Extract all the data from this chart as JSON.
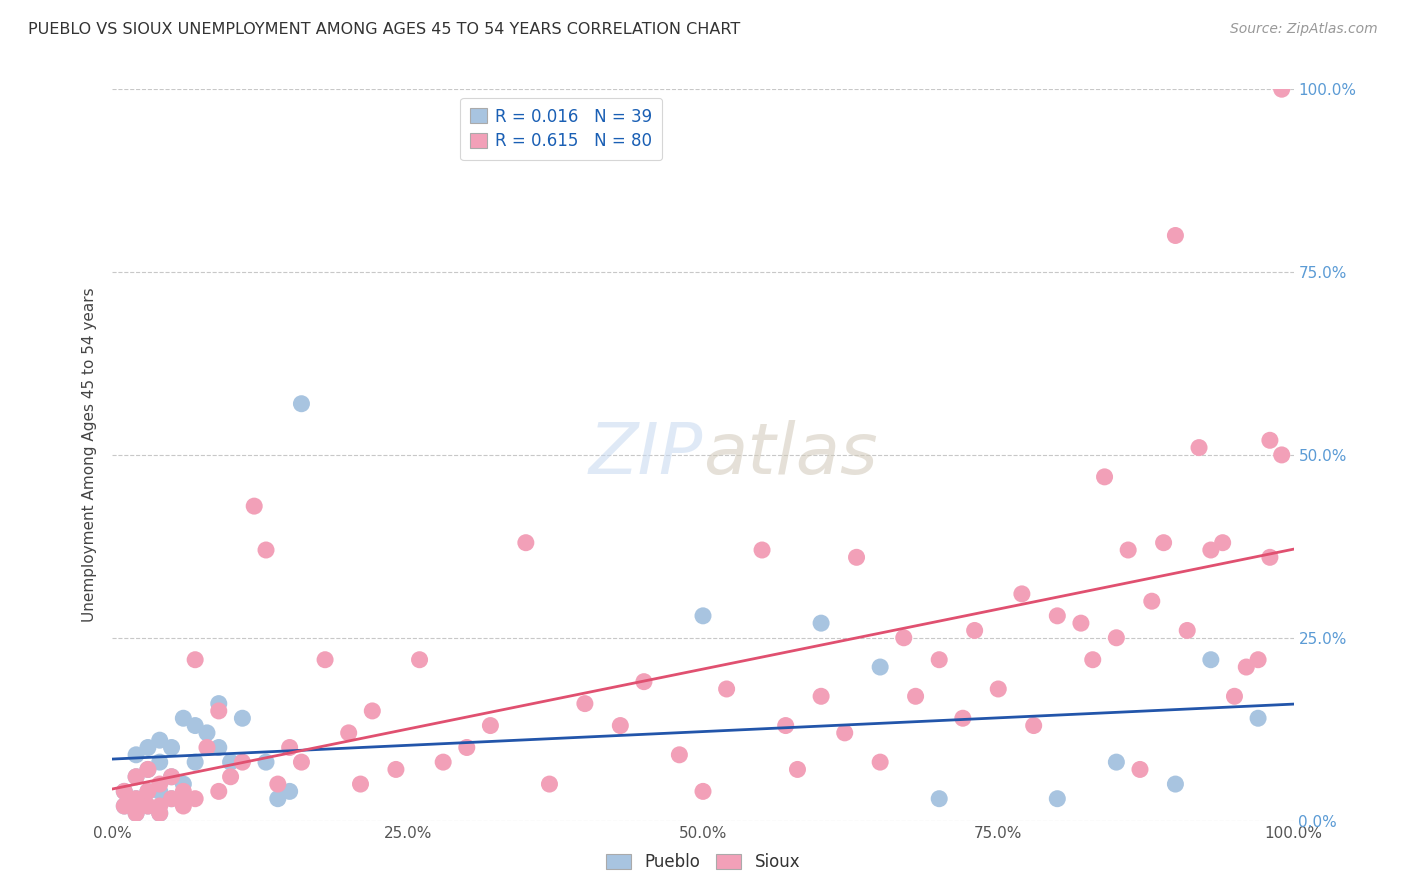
{
  "title": "PUEBLO VS SIOUX UNEMPLOYMENT AMONG AGES 45 TO 54 YEARS CORRELATION CHART",
  "source": "Source: ZipAtlas.com",
  "ylabel": "Unemployment Among Ages 45 to 54 years",
  "xlim": [
    0,
    1.0
  ],
  "ylim": [
    0,
    1.0
  ],
  "xtick_labels": [
    "0.0%",
    "25.0%",
    "50.0%",
    "75.0%",
    "100.0%"
  ],
  "xtick_vals": [
    0.0,
    0.25,
    0.5,
    0.75,
    1.0
  ],
  "right_ytick_labels": [
    "100.0%",
    "75.0%",
    "50.0%",
    "25.0%",
    "0.0%"
  ],
  "right_ytick_vals": [
    1.0,
    0.75,
    0.5,
    0.25,
    0.0
  ],
  "pueblo_color": "#a8c4e0",
  "sioux_color": "#f2a0b8",
  "pueblo_line_color": "#2255aa",
  "sioux_line_color": "#e05070",
  "pueblo_R": 0.016,
  "pueblo_N": 39,
  "sioux_R": 0.615,
  "sioux_N": 80,
  "background_color": "#ffffff",
  "grid_color": "#c8c8c8",
  "pueblo_scatter_x": [
    0.01,
    0.01,
    0.02,
    0.02,
    0.02,
    0.02,
    0.03,
    0.03,
    0.03,
    0.03,
    0.04,
    0.04,
    0.04,
    0.04,
    0.05,
    0.05,
    0.05,
    0.06,
    0.06,
    0.07,
    0.07,
    0.08,
    0.09,
    0.09,
    0.1,
    0.11,
    0.13,
    0.14,
    0.15,
    0.16,
    0.5,
    0.6,
    0.65,
    0.7,
    0.8,
    0.85,
    0.9,
    0.93,
    0.97
  ],
  "pueblo_scatter_y": [
    0.02,
    0.04,
    0.01,
    0.03,
    0.06,
    0.09,
    0.02,
    0.04,
    0.07,
    0.1,
    0.01,
    0.04,
    0.08,
    0.11,
    0.03,
    0.06,
    0.1,
    0.05,
    0.14,
    0.08,
    0.13,
    0.12,
    0.1,
    0.16,
    0.08,
    0.14,
    0.08,
    0.03,
    0.04,
    0.57,
    0.28,
    0.27,
    0.21,
    0.03,
    0.03,
    0.08,
    0.05,
    0.22,
    0.14
  ],
  "sioux_scatter_x": [
    0.01,
    0.01,
    0.02,
    0.02,
    0.02,
    0.03,
    0.03,
    0.03,
    0.04,
    0.04,
    0.04,
    0.05,
    0.05,
    0.06,
    0.06,
    0.07,
    0.07,
    0.08,
    0.09,
    0.09,
    0.1,
    0.11,
    0.12,
    0.13,
    0.14,
    0.15,
    0.16,
    0.18,
    0.2,
    0.21,
    0.22,
    0.24,
    0.26,
    0.28,
    0.3,
    0.32,
    0.35,
    0.37,
    0.4,
    0.43,
    0.45,
    0.48,
    0.5,
    0.52,
    0.55,
    0.57,
    0.58,
    0.6,
    0.62,
    0.63,
    0.65,
    0.67,
    0.68,
    0.7,
    0.72,
    0.73,
    0.75,
    0.77,
    0.78,
    0.8,
    0.82,
    0.83,
    0.84,
    0.85,
    0.86,
    0.87,
    0.88,
    0.89,
    0.9,
    0.91,
    0.92,
    0.93,
    0.94,
    0.95,
    0.96,
    0.97,
    0.98,
    0.98,
    0.99,
    0.99
  ],
  "sioux_scatter_y": [
    0.02,
    0.04,
    0.01,
    0.03,
    0.06,
    0.02,
    0.04,
    0.07,
    0.02,
    0.05,
    0.01,
    0.03,
    0.06,
    0.04,
    0.02,
    0.03,
    0.22,
    0.1,
    0.04,
    0.15,
    0.06,
    0.08,
    0.43,
    0.37,
    0.05,
    0.1,
    0.08,
    0.22,
    0.12,
    0.05,
    0.15,
    0.07,
    0.22,
    0.08,
    0.1,
    0.13,
    0.38,
    0.05,
    0.16,
    0.13,
    0.19,
    0.09,
    0.04,
    0.18,
    0.37,
    0.13,
    0.07,
    0.17,
    0.12,
    0.36,
    0.08,
    0.25,
    0.17,
    0.22,
    0.14,
    0.26,
    0.18,
    0.31,
    0.13,
    0.28,
    0.27,
    0.22,
    0.47,
    0.25,
    0.37,
    0.07,
    0.3,
    0.38,
    0.8,
    0.26,
    0.51,
    0.37,
    0.38,
    0.17,
    0.21,
    0.22,
    0.52,
    0.36,
    0.5,
    1.0
  ]
}
